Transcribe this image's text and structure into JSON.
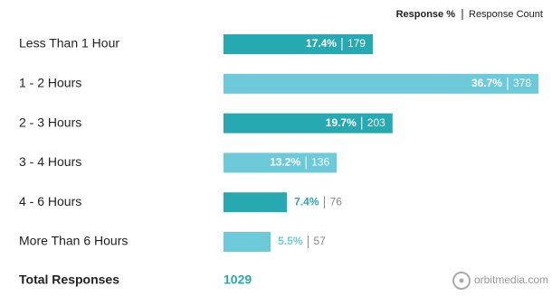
{
  "chart_data": {
    "type": "bar",
    "orientation": "horizontal",
    "legend": [
      "Response %",
      "Response Count"
    ],
    "categories": [
      "Less Than 1 Hour",
      "1 - 2 Hours",
      "2 - 3 Hours",
      "3 - 4 Hours",
      "4 - 6 Hours",
      "More Than 6 Hours"
    ],
    "values": [
      17.4,
      36.7,
      19.7,
      13.2,
      7.4,
      5.5
    ],
    "value_labels": [
      "17.4%",
      "36.7%",
      "19.7%",
      "13.2%",
      "7.4%",
      "5.5%"
    ],
    "counts": [
      179,
      378,
      203,
      136,
      76,
      57
    ],
    "colors": [
      "#26a9b0",
      "#6dcbd9",
      "#26a9b0",
      "#6dcbd9",
      "#26a9b0",
      "#6dcbd9"
    ],
    "total_label": "Total Responses",
    "total": 1029,
    "source": "orbitmedia.com"
  }
}
